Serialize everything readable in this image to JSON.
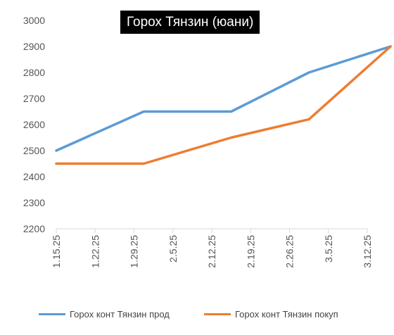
{
  "chart_data": {
    "type": "line",
    "title": "Горох Тянзин (юани)",
    "categories": [
      "1.15.25",
      "1.22.25",
      "1.29.25",
      "2.5.25",
      "2.12.25",
      "2.19.25",
      "2.26.25",
      "3.5.25",
      "3.12.25"
    ],
    "ylim": [
      2200,
      3000
    ],
    "yticks": [
      2200,
      2300,
      2400,
      2500,
      2600,
      2700,
      2800,
      2900,
      3000
    ],
    "grid": false,
    "legend_position": "bottom",
    "series": [
      {
        "name": "Горох конт Тянзин прод",
        "color": "#5b9bd5",
        "points": [
          {
            "x": 0,
            "y": 2500
          },
          {
            "x": 2.25,
            "y": 2650
          },
          {
            "x": 4.5,
            "y": 2650
          },
          {
            "x": 6.5,
            "y": 2800
          },
          {
            "x": 8.6,
            "y": 2900
          }
        ]
      },
      {
        "name": "Горох конт Тянзин покуп",
        "color": "#ed7d31",
        "points": [
          {
            "x": 0,
            "y": 2450
          },
          {
            "x": 2.25,
            "y": 2450
          },
          {
            "x": 4.5,
            "y": 2550
          },
          {
            "x": 6.5,
            "y": 2620
          },
          {
            "x": 8.6,
            "y": 2900
          }
        ]
      }
    ]
  }
}
